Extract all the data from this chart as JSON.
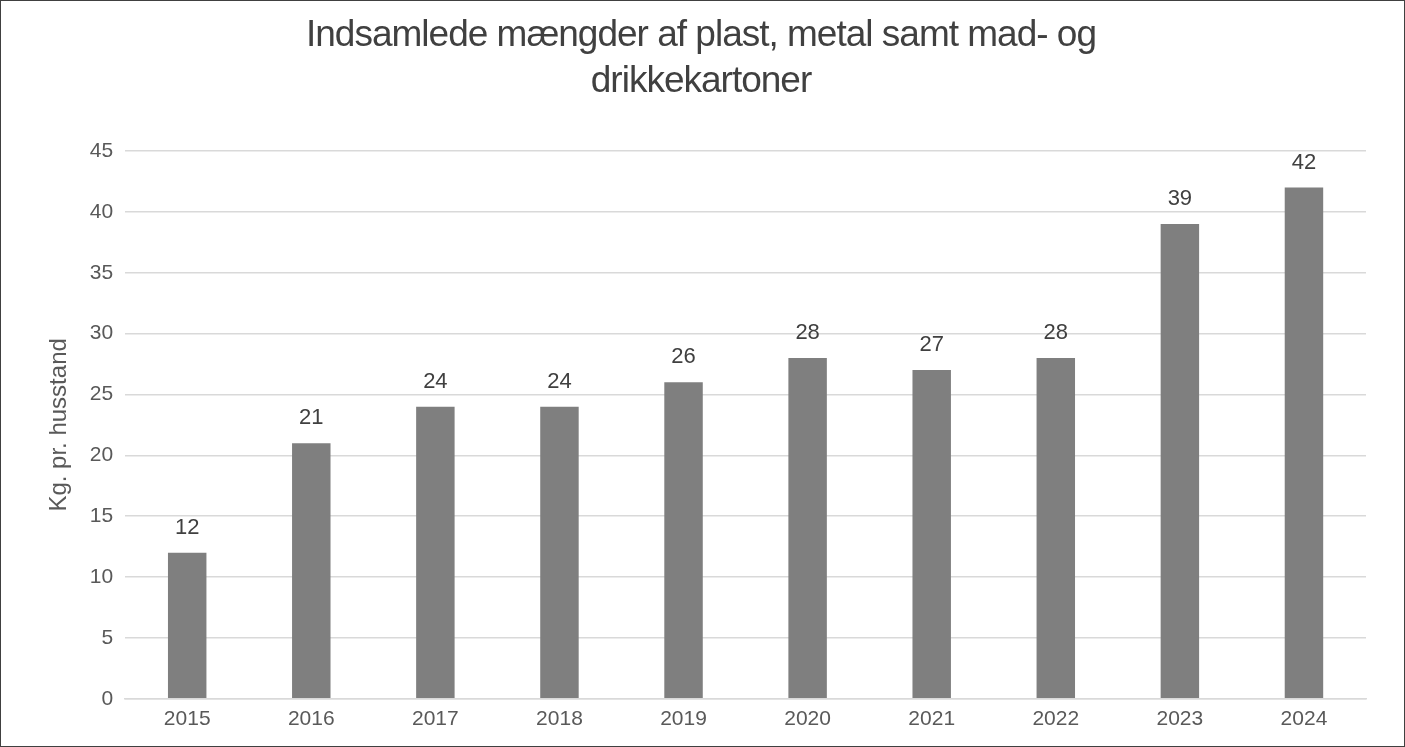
{
  "chart_data": {
    "type": "bar",
    "title": "Indsamlede mængder af plast, metal samt mad- og drikkekartoner",
    "ylabel": "Kg. pr. husstand",
    "categories": [
      "2015",
      "2016",
      "2017",
      "2018",
      "2019",
      "2020",
      "2021",
      "2022",
      "2023",
      "2024"
    ],
    "values": [
      12,
      21,
      24,
      24,
      26,
      28,
      27,
      28,
      39,
      42
    ],
    "color": "#7f7f7f",
    "ylim": [
      0,
      45
    ],
    "yticks": [
      0,
      5,
      10,
      15,
      20,
      25,
      30,
      35,
      40,
      45
    ],
    "grid": "y",
    "legend": false,
    "data_labels": true
  }
}
